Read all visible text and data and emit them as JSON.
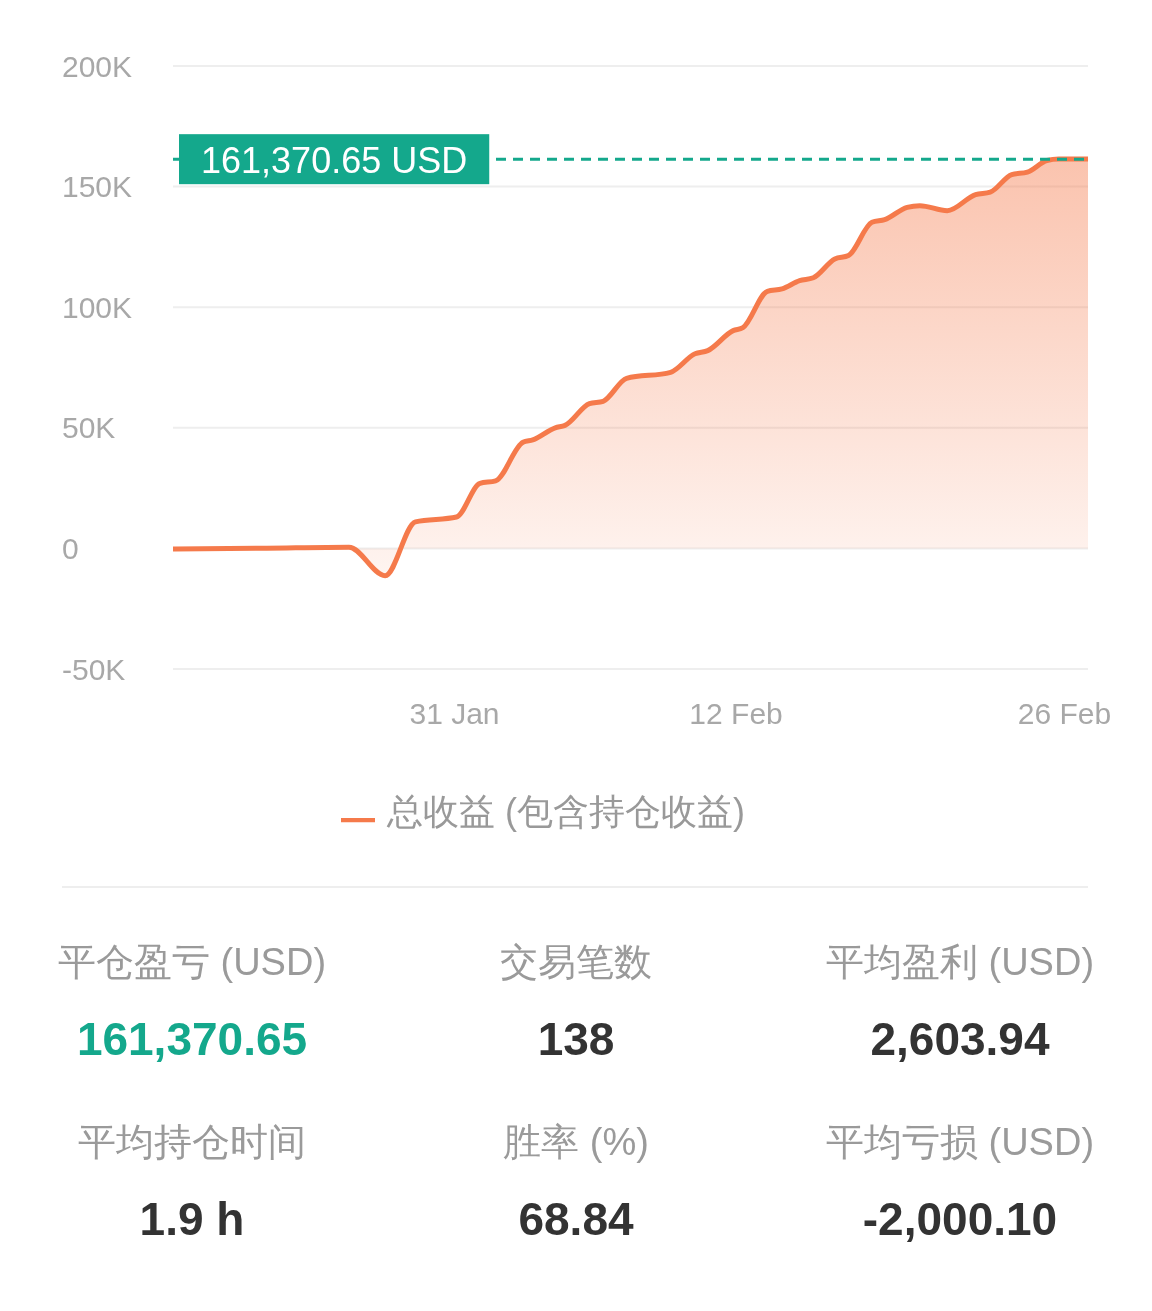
{
  "chart_data": [
    {
      "type": "area",
      "x": [
        "--01-19T00:00",
        "--01-23T00:00",
        "--01-26T12:00",
        "--01-28T01:00",
        "--01-29T08:00",
        "--01-31T02:00",
        "--02-01T02:00",
        "--02-01T18:00",
        "--02-02T22:00",
        "--02-03T08:00",
        "--02-04T07:00",
        "--02-04T17:00",
        "--02-05T18:00",
        "--02-06T08:00",
        "--02-07T08:00",
        "--02-09T05:00",
        "--02-10T06:00",
        "--02-10T19:00",
        "--02-11T21:00",
        "--02-12T07:00",
        "--02-13T08:00",
        "--02-13T23:00",
        "--02-14T17:00",
        "--02-15T07:00",
        "--02-16T05:00",
        "--02-16T19:00",
        "--02-17T19:00",
        "--02-18T08:00",
        "--02-19T07:00",
        "--02-19T20:00",
        "--02-21T00:00",
        "--02-22T05:00",
        "--02-22T20:00",
        "--02-23T18:00",
        "--02-24T10:00",
        "--02-25T06:00",
        "--02-25T18:00",
        "--02-27T00:00"
      ],
      "series": [
        {
          "name": "总收益 (包含持仓收益)",
          "color": "#f57a4b",
          "values": [
            -300,
            100,
            500,
            -11300,
            11000,
            13000,
            27000,
            28000,
            44000,
            45000,
            50000,
            51000,
            60000,
            61000,
            70500,
            73000,
            80700,
            82000,
            90300,
            91500,
            106600,
            107600,
            111000,
            112200,
            120000,
            121400,
            135200,
            136300,
            141400,
            142100,
            140000,
            146700,
            147700,
            155000,
            156000,
            160800,
            161400,
            161400
          ]
        }
      ],
      "xlim": [
        "--01-19",
        "--02-27"
      ],
      "xticks": [
        {
          "value": "--01-31",
          "label": "31 Jan"
        },
        {
          "value": "--02-12",
          "label": "12 Feb"
        },
        {
          "value": "--02-26",
          "label": "26 Feb"
        }
      ],
      "ylim": [
        -50000,
        200000
      ],
      "yticks": [
        {
          "value": -50000,
          "label": "-50K"
        },
        0,
        {
          "value": 50000,
          "label": "50K"
        },
        {
          "value": 100000,
          "label": "100K"
        },
        {
          "value": 150000,
          "label": "150K"
        },
        {
          "value": 200000,
          "label": "200K"
        }
      ],
      "grid": "y",
      "legend": "bottom",
      "ref_lines": [
        {
          "axis": "y",
          "value": 161370.65,
          "label": "161,370.65 USD",
          "color": "#14a88c",
          "line_style": "dashed"
        }
      ]
    },
    {
      "type": "other",
      "annotations": [
        "平仓盈亏 (USD)",
        "161,370.65",
        "交易笔数",
        "138",
        "平均盈利 (USD)",
        "2,603.94",
        "平均持仓时间",
        "1.9 h",
        "胜率 (%)",
        "68.84",
        "平均亏损 (USD)",
        "-2,000.10"
      ],
      "colors": [
        "#14a88c",
        "#333333",
        "#333333",
        "#333333",
        "#333333",
        "#333333"
      ]
    }
  ]
}
